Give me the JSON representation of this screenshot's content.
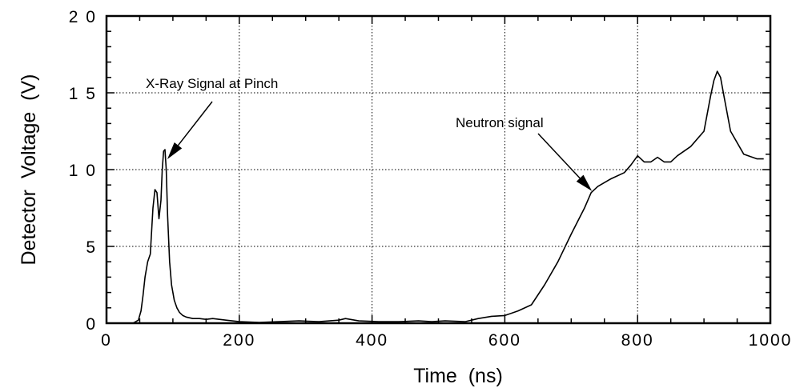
{
  "chart_data": {
    "type": "line",
    "title": "",
    "xlabel": "Time  (ns)",
    "ylabel": "Detector  Voltage  (V)",
    "xlim": [
      0,
      1000
    ],
    "ylim": [
      0,
      20
    ],
    "xticks": [
      0,
      200,
      400,
      600,
      800,
      1000
    ],
    "yticks": [
      0,
      5,
      10,
      15,
      20
    ],
    "xtick_labels": [
      "0",
      "200",
      "400",
      "600",
      "800",
      "1000"
    ],
    "ytick_labels": [
      "0",
      "5",
      "1 0",
      "1 5",
      "2 0"
    ],
    "grid": true,
    "series": [
      {
        "x": [
          0,
          40,
          48,
          52,
          55,
          58,
          62,
          66,
          70,
          73,
          76,
          79,
          82,
          84,
          86,
          88,
          90,
          92,
          95,
          98,
          102,
          106,
          110,
          115,
          120,
          130,
          140,
          150,
          160,
          170,
          180,
          200,
          230,
          260,
          290,
          320,
          350,
          360,
          380,
          410,
          440,
          470,
          490,
          510,
          540,
          560,
          580,
          600,
          620,
          640,
          660,
          680,
          700,
          720,
          730,
          740,
          760,
          780,
          790,
          800,
          810,
          820,
          830,
          840,
          850,
          860,
          880,
          900,
          910,
          915,
          920,
          925,
          930,
          940,
          960,
          980,
          990
        ],
        "y": [
          0,
          0,
          0.2,
          0.8,
          1.8,
          3.0,
          4.0,
          4.5,
          7.5,
          8.7,
          8.5,
          6.8,
          8.0,
          10.0,
          11.2,
          11.3,
          10.0,
          7.0,
          4.0,
          2.5,
          1.5,
          1.0,
          0.7,
          0.5,
          0.4,
          0.3,
          0.3,
          0.25,
          0.3,
          0.25,
          0.2,
          0.1,
          0.05,
          0.1,
          0.15,
          0.1,
          0.2,
          0.3,
          0.15,
          0.1,
          0.1,
          0.15,
          0.1,
          0.15,
          0.1,
          0.3,
          0.45,
          0.5,
          0.8,
          1.2,
          2.5,
          4.0,
          5.8,
          7.5,
          8.5,
          8.9,
          9.4,
          9.8,
          10.3,
          10.9,
          10.5,
          10.5,
          10.8,
          10.5,
          10.5,
          10.9,
          11.5,
          12.5,
          14.8,
          15.8,
          16.4,
          16.0,
          14.8,
          12.5,
          11.0,
          10.7,
          10.7
        ]
      }
    ],
    "annotations": [
      {
        "text": "X-Ray Signal at Pinch",
        "target_x": 88,
        "target_y": 11.3
      },
      {
        "text": "Neutron signal",
        "target_x": 730,
        "target_y": 8.5
      }
    ]
  }
}
